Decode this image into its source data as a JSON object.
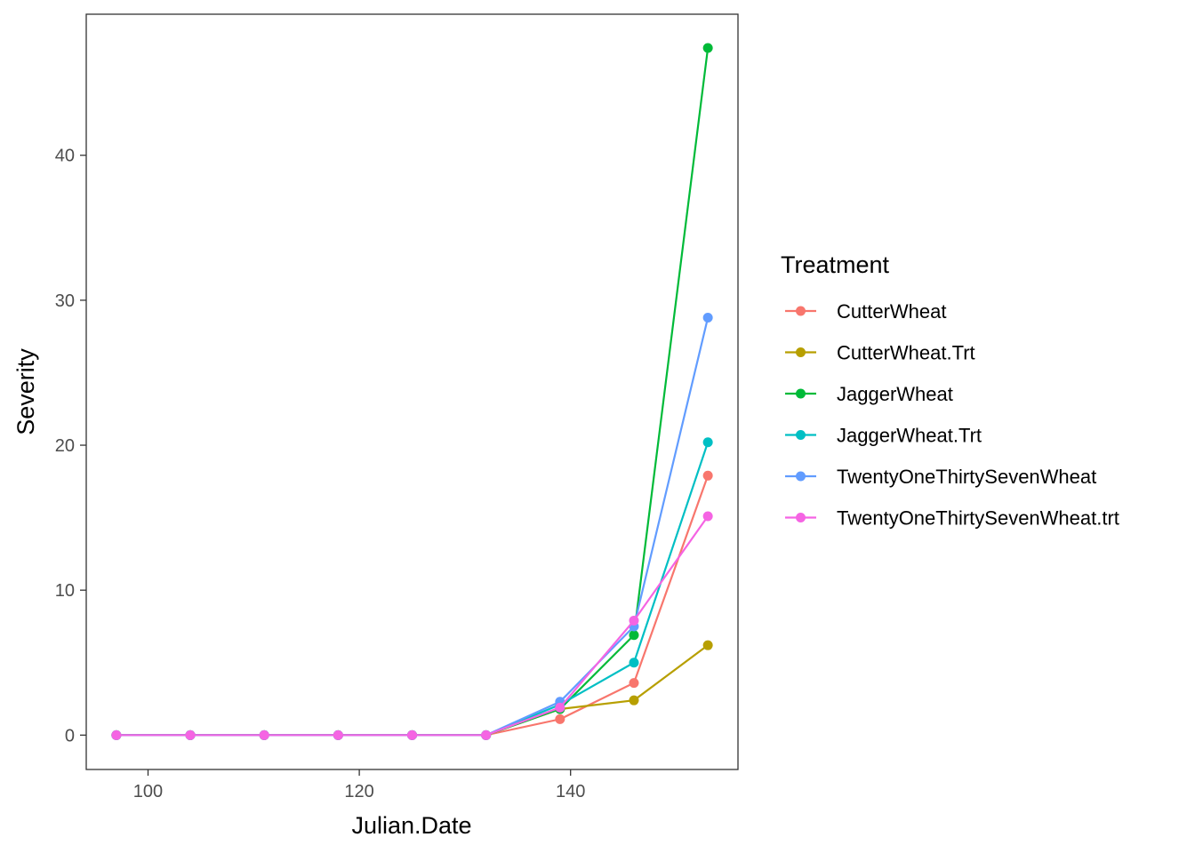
{
  "chart_data": {
    "type": "line",
    "xlabel": "Julian.Date",
    "ylabel": "Severity",
    "legend_title": "Treatment",
    "legend_position": "right",
    "grid": false,
    "xlim": [
      94.15,
      155.85
    ],
    "ylim": [
      -2.37,
      49.73
    ],
    "x_ticks": [
      100,
      120,
      140
    ],
    "y_ticks": [
      0,
      10,
      20,
      30,
      40
    ],
    "x": [
      97,
      104,
      111,
      118,
      125,
      132,
      139,
      146,
      153
    ],
    "series": [
      {
        "name": "CutterWheat",
        "color": "#F8766D",
        "values": [
          0,
          0,
          0,
          0,
          0,
          0,
          1.1,
          3.6,
          17.9
        ]
      },
      {
        "name": "CutterWheat.Trt",
        "color": "#B79F00",
        "values": [
          0,
          0,
          0,
          0,
          0,
          0,
          1.8,
          2.4,
          6.2
        ]
      },
      {
        "name": "JaggerWheat",
        "color": "#00BA38",
        "values": [
          0,
          0,
          0,
          0,
          0,
          0,
          1.8,
          6.9,
          47.4
        ]
      },
      {
        "name": "JaggerWheat.Trt",
        "color": "#00BFC4",
        "values": [
          0,
          0,
          0,
          0,
          0,
          0,
          2.1,
          5.0,
          20.2
        ]
      },
      {
        "name": "TwentyOneThirtySevenWheat",
        "color": "#619CFF",
        "values": [
          0,
          0,
          0,
          0,
          0,
          0,
          2.3,
          7.5,
          28.8
        ]
      },
      {
        "name": "TwentyOneThirtySevenWheat.trt",
        "color": "#F564E3",
        "values": [
          0,
          0,
          0,
          0,
          0,
          0,
          1.9,
          7.9,
          15.1
        ]
      }
    ]
  }
}
